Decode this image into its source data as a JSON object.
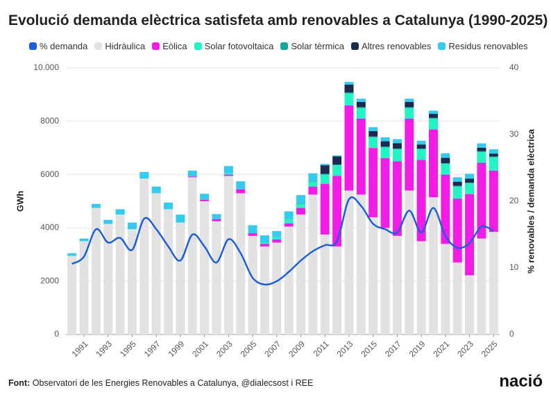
{
  "chart_data": {
    "type": "bar",
    "title": "Evolució demanda elèctrica satisfeta amb renovables a Catalunya (1990-2025)",
    "ylabel": "GWh",
    "y2label": "% renovables / demanda elèctrica",
    "source_label": "Font:",
    "source": "Observatori de les Energies Renovables a Catalunya, @dialecsost i REE",
    "logo": "nació",
    "stacked": true,
    "grid": true,
    "legend": "top",
    "categories": [
      null,
      "1991",
      null,
      "1993",
      null,
      "1995",
      null,
      "1997",
      null,
      "1999",
      null,
      "2001",
      null,
      "2003",
      null,
      "2005",
      null,
      "2007",
      null,
      "2009",
      null,
      "2011",
      null,
      "2013",
      null,
      "2015",
      null,
      "2017",
      null,
      "2019",
      null,
      "2021",
      null,
      "2023",
      null,
      "2025"
    ],
    "ylim": [
      0,
      10000
    ],
    "yticks": [
      0,
      2000,
      4000,
      6000,
      8000,
      {
        "value": 10000,
        "label": "10.000"
      }
    ],
    "y2lim": [
      0,
      40
    ],
    "y2ticks": [
      0,
      10,
      20,
      30,
      40
    ],
    "series": [
      {
        "name": "% demanda",
        "color": "#1a5fdc",
        "type": "line",
        "axis": "y2",
        "values": [
          10.6,
          11.7,
          15.8,
          13.8,
          14.5,
          12.7,
          17.4,
          15.8,
          13.2,
          11.1,
          15,
          13.2,
          10.8,
          14.3,
          12.2,
          8.5,
          7.5,
          8,
          9.4,
          11.1,
          12.5,
          13.4,
          14,
          20.3,
          19.3,
          16.6,
          15.8,
          15.3,
          18.6,
          15.3,
          19,
          14.8,
          13,
          13.7,
          16.2,
          15.5
        ]
      },
      {
        "name": "Hidràulica",
        "color": "#e2e2e2",
        "values": [
          2950,
          3500,
          4750,
          4150,
          4500,
          3950,
          5850,
          5300,
          4700,
          4200,
          5900,
          5000,
          4250,
          5950,
          5300,
          3700,
          3300,
          3450,
          4050,
          4500,
          5250,
          3750,
          3300,
          5400,
          5250,
          4400,
          4000,
          3700,
          5400,
          3500,
          5150,
          3400,
          2700,
          2220,
          3600,
          3850
        ]
      },
      {
        "name": "Eòlica",
        "color": "#f21ce6",
        "values": [
          0,
          0,
          0,
          0,
          0,
          0,
          0,
          0,
          0,
          0,
          30,
          50,
          80,
          50,
          150,
          100,
          100,
          120,
          120,
          250,
          300,
          1900,
          2650,
          3200,
          2850,
          2600,
          2620,
          2800,
          2700,
          3050,
          2550,
          2600,
          2400,
          3050,
          2850,
          2300
        ]
      },
      {
        "name": "Solar fotovoltaica",
        "color": "#22f5c4",
        "values": [
          0,
          0,
          0,
          0,
          0,
          0,
          0,
          0,
          0,
          0,
          0,
          0,
          0,
          50,
          0,
          0,
          50,
          80,
          150,
          150,
          180,
          350,
          400,
          450,
          400,
          400,
          400,
          450,
          400,
          400,
          400,
          400,
          450,
          400,
          400,
          500
        ]
      },
      {
        "name": "Solar tèrmica",
        "color": "#14a89a",
        "values": [
          0,
          0,
          0,
          0,
          0,
          0,
          0,
          0,
          0,
          0,
          0,
          0,
          0,
          0,
          0,
          0,
          0,
          0,
          0,
          20,
          20,
          30,
          30,
          30,
          30,
          30,
          30,
          30,
          30,
          30,
          30,
          30,
          30,
          30,
          30,
          30
        ]
      },
      {
        "name": "Altres renovables",
        "color": "#1b2a50",
        "values": [
          0,
          0,
          0,
          0,
          0,
          0,
          0,
          0,
          0,
          0,
          0,
          0,
          0,
          0,
          0,
          0,
          0,
          0,
          0,
          0,
          0,
          320,
          300,
          300,
          200,
          200,
          200,
          200,
          200,
          150,
          150,
          200,
          150,
          150,
          130,
          110
        ]
      },
      {
        "name": "Residus renovables",
        "color": "#33ccef",
        "values": [
          100,
          100,
          150,
          150,
          200,
          250,
          250,
          250,
          250,
          300,
          220,
          230,
          190,
          270,
          300,
          300,
          270,
          230,
          300,
          310,
          300,
          50,
          40,
          100,
          120,
          150,
          150,
          150,
          120,
          140,
          120,
          170,
          170,
          180,
          160,
          160
        ]
      }
    ]
  }
}
